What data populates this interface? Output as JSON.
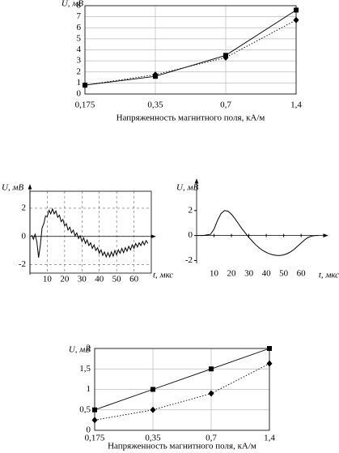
{
  "chart_data": [
    {
      "type": "line",
      "y_label": "U, мВ",
      "x_label": "Напряженность магнитного поля, кА/м",
      "categories": [
        "0,175",
        "0,35",
        "0,7",
        "1,4"
      ],
      "series": [
        {
          "color": "#000000",
          "marker": "square",
          "dash": "solid",
          "values": [
            0.8,
            1.6,
            3.5,
            7.6
          ]
        },
        {
          "color": "#000000",
          "marker": "diamond",
          "dash": "dotted",
          "values": [
            0.8,
            1.75,
            3.3,
            6.7
          ]
        }
      ],
      "ylim": [
        0,
        8
      ],
      "yticks": [
        0,
        1,
        2,
        3,
        4,
        5,
        6,
        7,
        8
      ],
      "grid": true
    },
    {
      "type": "line",
      "y_label": "U, мВ",
      "x_label": "t, мкс",
      "x": [
        1,
        2,
        3,
        4,
        5,
        6,
        7,
        8,
        9,
        10,
        11,
        12,
        13,
        14,
        15,
        16,
        17,
        18,
        19,
        20,
        21,
        22,
        23,
        24,
        25,
        26,
        27,
        28,
        29,
        30,
        31,
        32,
        33,
        34,
        35,
        36,
        37,
        38,
        39,
        40,
        41,
        42,
        43,
        44,
        45,
        46,
        47,
        48,
        49,
        50,
        51,
        52,
        53,
        54,
        55,
        56,
        57,
        58,
        59,
        60,
        61,
        62,
        63,
        64,
        65,
        66,
        67,
        68
      ],
      "series": [
        {
          "color": "#000000",
          "dash": "solid",
          "values": [
            0.1,
            -0.2,
            0.15,
            -0.4,
            -1.5,
            -0.6,
            0.6,
            0.9,
            1.45,
            1.4,
            1.85,
            1.6,
            1.95,
            1.6,
            1.8,
            1.35,
            1.5,
            1.05,
            1.2,
            0.75,
            0.9,
            0.45,
            0.65,
            0.25,
            0.45,
            0.05,
            0.25,
            -0.15,
            0.05,
            -0.35,
            -0.1,
            -0.5,
            -0.25,
            -0.65,
            -0.45,
            -0.85,
            -0.6,
            -1.0,
            -0.8,
            -1.2,
            -0.95,
            -1.35,
            -1.1,
            -1.45,
            -1.15,
            -1.45,
            -1.1,
            -1.4,
            -1.0,
            -1.3,
            -0.95,
            -1.2,
            -0.85,
            -1.15,
            -0.8,
            -1.05,
            -0.7,
            -0.95,
            -0.6,
            -0.85,
            -0.5,
            -0.75,
            -0.45,
            -0.65,
            -0.35,
            -0.6,
            -0.3,
            -0.5
          ]
        }
      ],
      "xlim": [
        0,
        70
      ],
      "xticks": [
        10,
        20,
        30,
        40,
        50,
        60
      ],
      "ylim": [
        -2.6,
        3.2
      ],
      "yticks": [
        -2,
        0,
        2
      ],
      "grid": true,
      "frame": true
    },
    {
      "type": "line",
      "y_label": "U, мВ",
      "x_label": "t, мкс",
      "x": [
        0,
        4,
        8,
        10,
        12,
        14,
        16,
        18,
        20,
        22,
        24,
        26,
        28,
        30,
        32,
        34,
        36,
        38,
        40,
        42,
        44,
        46,
        48,
        50,
        52,
        54,
        56,
        58,
        60,
        62,
        64,
        66,
        68,
        70
      ],
      "series": [
        {
          "color": "#000000",
          "dash": "solid",
          "values": [
            0,
            0,
            0.1,
            0.5,
            1.2,
            1.75,
            2.0,
            1.95,
            1.7,
            1.35,
            0.95,
            0.55,
            0.2,
            -0.15,
            -0.45,
            -0.75,
            -1.0,
            -1.2,
            -1.35,
            -1.47,
            -1.55,
            -1.6,
            -1.6,
            -1.55,
            -1.45,
            -1.3,
            -1.1,
            -0.85,
            -0.6,
            -0.35,
            -0.15,
            -0.05,
            0,
            0
          ]
        }
      ],
      "xlim": [
        0,
        72
      ],
      "xticks": [
        10,
        20,
        30,
        40,
        50,
        60
      ],
      "ylim": [
        -2.1,
        4
      ],
      "yticks": [
        -2,
        0,
        2
      ],
      "grid": false,
      "frame": false
    },
    {
      "type": "line",
      "y_label": "U, мВ",
      "x_label": "Напряженность магнитного поля, кА/м",
      "categories": [
        "0,175",
        "0,35",
        "0,7",
        "1,4"
      ],
      "series": [
        {
          "color": "#000000",
          "marker": "square",
          "dash": "solid",
          "values": [
            0.5,
            1.0,
            1.5,
            2.0
          ]
        },
        {
          "color": "#000000",
          "marker": "diamond",
          "dash": "dotted",
          "values": [
            0.25,
            0.5,
            0.9,
            1.63
          ]
        }
      ],
      "ylim": [
        0,
        2
      ],
      "yticks": [
        0,
        {
          "value": 0.5,
          "label": "0,5"
        },
        1,
        {
          "value": 1.5,
          "label": "1,5"
        },
        2
      ],
      "grid": true
    }
  ]
}
